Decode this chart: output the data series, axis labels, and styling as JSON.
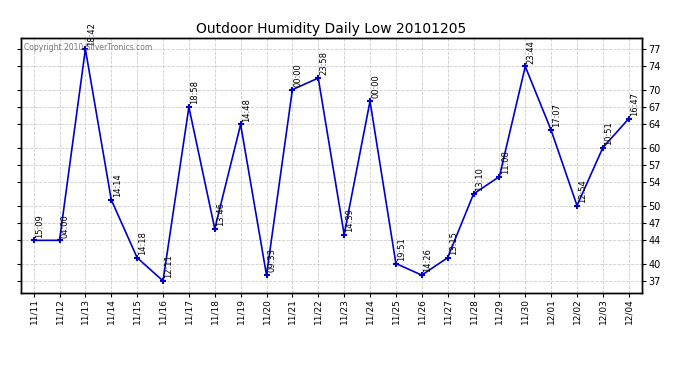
{
  "title": "Outdoor Humidity Daily Low 20101205",
  "copyright_text": "Copyright 2010 SilverTronics.com",
  "line_color": "#0000cc",
  "background_color": "#ffffff",
  "grid_color": "#cccccc",
  "label_color": "#000000",
  "dates": [
    "11/11",
    "11/12",
    "11/13",
    "11/14",
    "11/15",
    "11/16",
    "11/17",
    "11/18",
    "11/19",
    "11/20",
    "11/21",
    "11/22",
    "11/23",
    "11/24",
    "11/25",
    "11/26",
    "11/27",
    "11/28",
    "11/29",
    "11/30",
    "12/01",
    "12/02",
    "12/03",
    "12/04"
  ],
  "values": [
    44,
    44,
    77,
    51,
    41,
    37,
    67,
    46,
    64,
    38,
    70,
    72,
    45,
    68,
    40,
    38,
    41,
    52,
    55,
    74,
    63,
    50,
    60,
    65
  ],
  "time_labels": [
    "15:09",
    "04:00",
    "18:42",
    "14:14",
    "14:18",
    "12:11",
    "18:58",
    "13:46",
    "14:48",
    "09:33",
    "00:00",
    "23:58",
    "14:39",
    "00:00",
    "19:51",
    "14:26",
    "13:15",
    "13:10",
    "11:08",
    "23:44",
    "17:07",
    "12:54",
    "10:51",
    "16:47"
  ],
  "yticks": [
    37,
    40,
    44,
    47,
    50,
    54,
    57,
    60,
    64,
    67,
    70,
    74,
    77
  ],
  "ylim": [
    35,
    79
  ],
  "xlim": [
    -0.5,
    23.5
  ]
}
